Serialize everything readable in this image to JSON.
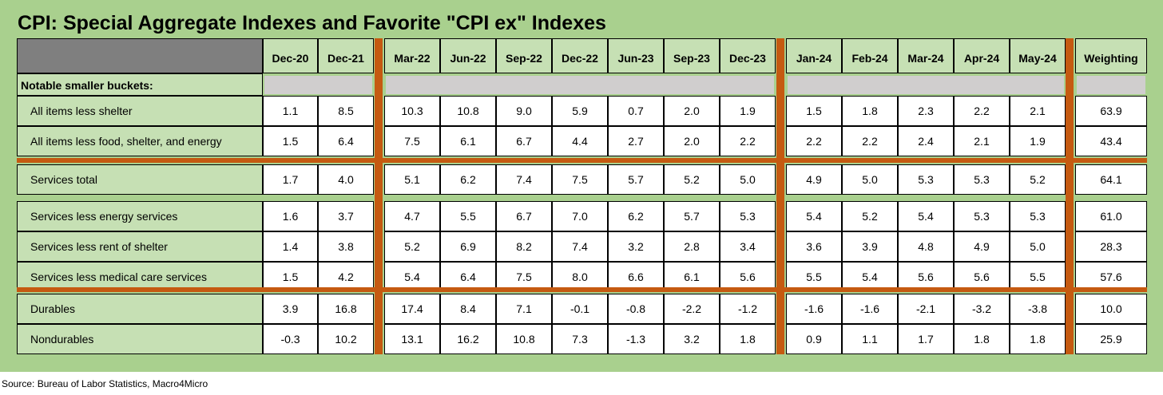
{
  "title": "CPI: Special Aggregate Indexes and Favorite \"CPI ex\" Indexes",
  "source": "Source: Bureau of Labor Statistics, Macro4Micro",
  "colors": {
    "background": "#a9d08e",
    "label_fill": "#c6e0b4",
    "header_dark": "#7f7f7f",
    "header_gray": "#d0cece",
    "separator": "#c55a11",
    "cell_fill": "#ffffff"
  },
  "chart_data": {
    "type": "table",
    "columns": [
      "Dec-20",
      "Dec-21",
      "Mar-22",
      "Jun-22",
      "Sep-22",
      "Dec-22",
      "Jun-23",
      "Sep-23",
      "Dec-23",
      "Jan-24",
      "Feb-24",
      "Mar-24",
      "Apr-24",
      "May-24",
      "Weighting"
    ],
    "section_header": "Notable smaller buckets:",
    "rows": [
      {
        "label": "All items less shelter",
        "values": [
          "1.1",
          "8.5",
          "10.3",
          "10.8",
          "9.0",
          "5.9",
          "0.7",
          "2.0",
          "1.9",
          "1.5",
          "1.8",
          "2.3",
          "2.2",
          "2.1",
          "63.9"
        ]
      },
      {
        "label": "All items less food, shelter, and energy",
        "values": [
          "1.5",
          "6.4",
          "7.5",
          "6.1",
          "6.7",
          "4.4",
          "2.7",
          "2.0",
          "2.2",
          "2.2",
          "2.2",
          "2.4",
          "2.1",
          "1.9",
          "43.4"
        ]
      },
      {
        "label": "Services total",
        "values": [
          "1.7",
          "4.0",
          "5.1",
          "6.2",
          "7.4",
          "7.5",
          "5.7",
          "5.2",
          "5.0",
          "4.9",
          "5.0",
          "5.3",
          "5.3",
          "5.2",
          "64.1"
        ]
      },
      {
        "label": "Services less energy services",
        "values": [
          "1.6",
          "3.7",
          "4.7",
          "5.5",
          "6.7",
          "7.0",
          "6.2",
          "5.7",
          "5.3",
          "5.4",
          "5.2",
          "5.4",
          "5.3",
          "5.3",
          "61.0"
        ]
      },
      {
        "label": "Services less rent of shelter",
        "values": [
          "1.4",
          "3.8",
          "5.2",
          "6.9",
          "8.2",
          "7.4",
          "3.2",
          "2.8",
          "3.4",
          "3.6",
          "3.9",
          "4.8",
          "4.9",
          "5.0",
          "28.3"
        ]
      },
      {
        "label": "Services less medical care services",
        "values": [
          "1.5",
          "4.2",
          "5.4",
          "6.4",
          "7.5",
          "8.0",
          "6.6",
          "6.1",
          "5.6",
          "5.5",
          "5.4",
          "5.6",
          "5.6",
          "5.5",
          "57.6"
        ]
      },
      {
        "label": "Durables",
        "values": [
          "3.9",
          "16.8",
          "17.4",
          "8.4",
          "7.1",
          "-0.1",
          "-0.8",
          "-2.2",
          "-1.2",
          "-1.6",
          "-1.6",
          "-2.1",
          "-3.2",
          "-3.8",
          "10.0"
        ]
      },
      {
        "label": "Nondurables",
        "values": [
          "-0.3",
          "10.2",
          "13.1",
          "16.2",
          "10.8",
          "7.3",
          "-1.3",
          "3.2",
          "1.8",
          "0.9",
          "1.1",
          "1.7",
          "1.8",
          "1.8",
          "25.9"
        ]
      }
    ]
  }
}
